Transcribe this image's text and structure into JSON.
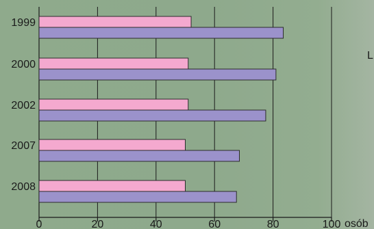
{
  "chart_data": {
    "type": "bar",
    "orientation": "horizontal",
    "categories": [
      "1999",
      "2000",
      "2002",
      "2007",
      "2008"
    ],
    "series": [
      {
        "color": "#f4a9cf",
        "values": [
          52,
          51,
          51,
          50,
          50
        ]
      },
      {
        "color": "#9b92cb",
        "values": [
          83.5,
          81,
          77.5,
          68.5,
          67.5
        ]
      }
    ],
    "x_ticks": [
      "0",
      "20",
      "40",
      "60",
      "80",
      "100"
    ],
    "xlim": [
      0,
      100
    ],
    "x_unit_label": "osób",
    "grid": true,
    "side_text": "L"
  }
}
